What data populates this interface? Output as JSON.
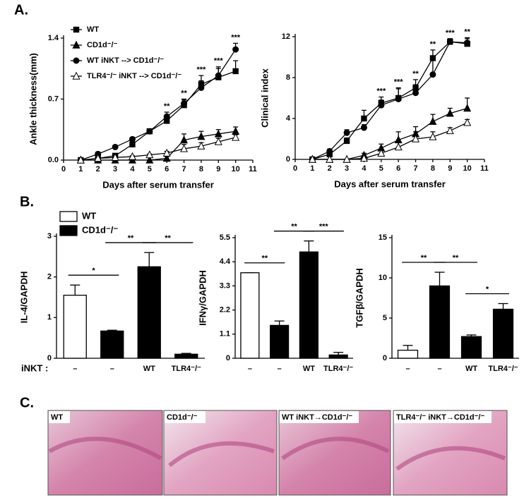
{
  "panels": [
    "A.",
    "B.",
    "C."
  ],
  "histology": {
    "labels": [
      "WT",
      "CD1d⁻/⁻",
      "WT iNKT→CD1d⁻/⁻",
      "TLR4⁻/⁻ iNKT→CD1d⁻/⁻"
    ]
  },
  "chart_data": [
    {
      "type": "line",
      "x_label": "Days after serum transfer",
      "y_label": "Ankle thickness(mm)",
      "x": [
        1,
        2,
        3,
        4,
        5,
        6,
        7,
        8,
        9,
        10
      ],
      "xlim": [
        0,
        11
      ],
      "xticks": [
        0,
        1,
        2,
        3,
        4,
        5,
        6,
        7,
        8,
        9,
        10,
        11
      ],
      "ylim": [
        0,
        1.4
      ],
      "yticks": [
        {
          "value": 0,
          "label": "0.0"
        },
        0.7,
        1.4
      ],
      "legend": true,
      "series": [
        {
          "name": "WT",
          "color": "#000000",
          "marker": "square",
          "values": [
            0,
            0.02,
            0.05,
            0.18,
            0.33,
            0.45,
            0.63,
            0.87,
            0.95,
            1.02
          ],
          "errors": [
            0,
            0.01,
            0.02,
            0.03,
            0.03,
            0.05,
            0.06,
            0.1,
            0.1,
            0.12
          ]
        },
        {
          "name": "CD1d⁻/⁻",
          "color": "#000000",
          "marker": "triangle",
          "values": [
            0,
            0,
            0,
            0,
            0,
            0.02,
            0.23,
            0.27,
            0.3,
            0.33
          ],
          "errors": [
            0,
            0,
            0,
            0,
            0,
            0.02,
            0.07,
            0.06,
            0.05,
            0.05
          ]
        },
        {
          "name": "WT iNKT --> CD1d⁻/⁻",
          "color": "#000000",
          "marker": "circle",
          "values": [
            0,
            0.07,
            0.15,
            0.24,
            0.33,
            0.5,
            0.65,
            0.83,
            0.97,
            1.27
          ],
          "errors": [
            0,
            0.02,
            0.02,
            0.02,
            0.02,
            0.05,
            0.05,
            0.08,
            0.1,
            0.07
          ]
        },
        {
          "name": "TLR4⁻/⁻ iNKT --> CD1d⁻/⁻",
          "color": "#000000",
          "marker": "triangle-open",
          "values": [
            0,
            0.02,
            0.03,
            0.04,
            0.06,
            0.08,
            0.13,
            0.16,
            0.21,
            0.26
          ],
          "errors": [
            0,
            0.01,
            0.01,
            0.01,
            0.01,
            0.02,
            0.05,
            0.04,
            0.04,
            0.03
          ]
        }
      ],
      "annotations": [
        {
          "x": 6,
          "text": "**"
        },
        {
          "x": 7,
          "text": "**"
        },
        {
          "x": 8,
          "text": "***"
        },
        {
          "x": 9,
          "text": "***"
        },
        {
          "x": 10,
          "text": "***"
        }
      ]
    },
    {
      "type": "line",
      "x_label": "Days after serum transfer",
      "y_label": "Clinical index",
      "x": [
        1,
        2,
        3,
        4,
        5,
        6,
        7,
        8,
        9,
        10
      ],
      "xlim": [
        0,
        11
      ],
      "xticks": [
        0,
        1,
        2,
        3,
        4,
        5,
        6,
        7,
        8,
        9,
        10,
        11
      ],
      "ylim": [
        0,
        12
      ],
      "yticks": [
        0,
        4,
        8,
        12
      ],
      "legend": false,
      "series": [
        {
          "color": "#000000",
          "marker": "square",
          "values": [
            0,
            0.5,
            1.8,
            4,
            5.5,
            6,
            7,
            9.9,
            11.5,
            11.3
          ],
          "errors": [
            0,
            0.2,
            0.3,
            0.8,
            0.6,
            1,
            0.8,
            0.8,
            0.3,
            0.5
          ]
        },
        {
          "color": "#000000",
          "marker": "triangle",
          "values": [
            0,
            0,
            0,
            0.4,
            1.1,
            1.9,
            2.5,
            3.7,
            4.5,
            5
          ],
          "errors": [
            0,
            0,
            0,
            0.2,
            0.4,
            0.8,
            0.7,
            0.7,
            0.5,
            1
          ]
        },
        {
          "color": "#000000",
          "marker": "circle",
          "values": [
            0,
            0.8,
            2.6,
            3.1,
            5.3,
            5.9,
            6.5,
            8.3,
            11.5,
            11.4
          ],
          "errors": [
            0,
            0.2,
            0.3,
            0.3,
            0.5,
            1,
            0.8,
            1.5,
            0.3,
            0.5
          ]
        },
        {
          "color": "#000000",
          "marker": "triangle-open",
          "values": [
            0,
            0,
            0,
            0.1,
            0.6,
            1.2,
            2,
            2.2,
            2.8,
            3.6
          ],
          "errors": [
            0,
            0,
            0,
            0.1,
            0.3,
            0.6,
            0.7,
            0.5,
            0.3,
            0.3
          ]
        }
      ],
      "annotations": [
        {
          "x": 5,
          "text": "***"
        },
        {
          "x": 6,
          "text": "***"
        },
        {
          "x": 7,
          "text": "**"
        },
        {
          "x": 8,
          "text": "**"
        },
        {
          "x": 9,
          "text": "***"
        },
        {
          "x": 10,
          "text": "**"
        }
      ]
    },
    {
      "type": "bar",
      "y_label": "IL-4/GAPDH",
      "row_label": "iNKT :",
      "categories": [
        "–",
        "–",
        "WT",
        "TLR4⁻/⁻"
      ],
      "values": [
        1.55,
        0.67,
        2.25,
        0.1
      ],
      "errors": [
        0.25,
        0.02,
        0.35,
        0.02
      ],
      "colors": [
        "#ffffff",
        "#000000",
        "#000000",
        "#000000"
      ],
      "ylim": [
        0,
        3
      ],
      "yticks": [
        0,
        1,
        2,
        3
      ],
      "legend": [
        {
          "name": "WT",
          "color": "#ffffff"
        },
        {
          "name": "CD1d⁻/⁻",
          "color": "#000000"
        }
      ],
      "brackets": [
        {
          "from": 0,
          "to": 1,
          "text": "*"
        },
        {
          "from": 1,
          "to": 2,
          "text": "**"
        },
        {
          "from": 2,
          "to": 3,
          "text": "**"
        }
      ]
    },
    {
      "type": "bar",
      "y_label": "IFNγ/GAPDH",
      "categories": [
        "–",
        "–",
        "WT",
        "TLR4⁻/⁻"
      ],
      "values": [
        3.9,
        1.5,
        4.85,
        0.15
      ],
      "errors": [
        0,
        0.2,
        0.5,
        0.12
      ],
      "colors": [
        "#ffffff",
        "#000000",
        "#000000",
        "#000000"
      ],
      "ylim": [
        0,
        5.5
      ],
      "yticks": [
        0,
        1.1,
        2.2,
        3.3,
        4.4,
        5.5
      ],
      "brackets": [
        {
          "from": 0,
          "to": 1,
          "text": "**"
        },
        {
          "from": 1,
          "to": 2,
          "text": "**"
        },
        {
          "from": 2,
          "to": 3,
          "text": "***"
        }
      ]
    },
    {
      "type": "bar",
      "y_label": "TGFβ/GAPDH",
      "categories": [
        "–",
        "–",
        "WT",
        "TLR4⁻/⁻"
      ],
      "values": [
        1,
        9,
        2.7,
        6.1
      ],
      "errors": [
        0.6,
        1.7,
        0.2,
        0.7
      ],
      "colors": [
        "#ffffff",
        "#000000",
        "#000000",
        "#000000"
      ],
      "ylim": [
        0,
        15
      ],
      "yticks": [
        0,
        5,
        10,
        15
      ],
      "brackets": [
        {
          "from": 0,
          "to": 1,
          "text": "**"
        },
        {
          "from": 1,
          "to": 2,
          "text": "**"
        },
        {
          "from": 2,
          "to": 3,
          "text": "*"
        }
      ]
    }
  ]
}
